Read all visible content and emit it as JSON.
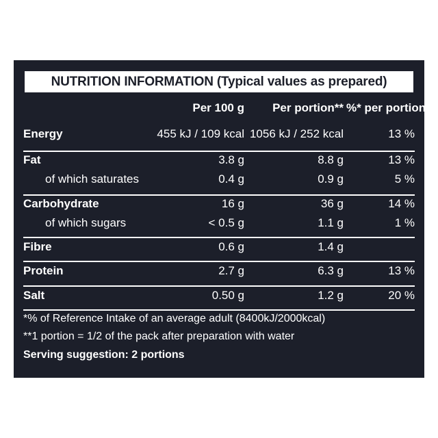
{
  "title": "NUTRITION INFORMATION (Typical values as prepared)",
  "headers": {
    "per100": "Per 100 g",
    "per_portion": "Per portion**",
    "pct_portion": "%* per portion**"
  },
  "rows": [
    {
      "label": "Energy",
      "per100": "455 kJ / 109 kcal",
      "portion": "1056 kJ / 252 kcal",
      "pct": "13 %"
    },
    {
      "label": "Fat",
      "per100": "3.8 g",
      "portion": "8.8 g",
      "pct": "13 %"
    },
    {
      "label": "of which saturates",
      "per100": "0.4 g",
      "portion": "0.9 g",
      "pct": "5 %"
    },
    {
      "label": "Carbohydrate",
      "per100": "16 g",
      "portion": "36 g",
      "pct": "14 %"
    },
    {
      "label": "of which sugars",
      "per100": "< 0.5 g",
      "portion": "1.1 g",
      "pct": "1 %"
    },
    {
      "label": "Fibre",
      "per100": "0.6 g",
      "portion": "1.4 g",
      "pct": ""
    },
    {
      "label": "Protein",
      "per100": "2.7 g",
      "portion": "6.3 g",
      "pct": "13 %"
    },
    {
      "label": "Salt",
      "per100": "0.50 g",
      "portion": "1.2 g",
      "pct": "20 %"
    }
  ],
  "footnotes": {
    "ri": "*% of Reference Intake of an average adult (8400kJ/2000kcal)",
    "portion": "**1 portion = 1/2 of the pack after preparation with water",
    "serving": "Serving suggestion: 2 portions"
  },
  "colors": {
    "panel": "#1c1f2a",
    "text": "#ffffff"
  }
}
